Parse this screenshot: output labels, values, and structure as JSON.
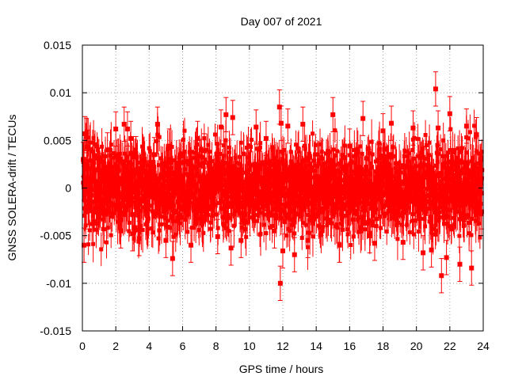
{
  "chart_data": {
    "type": "scatter",
    "title": "Day 007 of 2021",
    "xlabel": "GPS time / hours",
    "ylabel": "GNSS SOLERA-drift / TECUs",
    "xlim": [
      0,
      24
    ],
    "ylim": [
      -0.015,
      0.015
    ],
    "xticks": [
      "0",
      "2",
      "4",
      "6",
      "8",
      "10",
      "12",
      "14",
      "16",
      "18",
      "20",
      "22",
      "24"
    ],
    "yticks": [
      "0.015",
      "0.01",
      "0.005",
      "0",
      "-0.005",
      "-0.01",
      "-0.015"
    ],
    "grid": true,
    "legend": "none",
    "color": "#ff0000",
    "points": [
      [
        0.05,
        0.003
      ],
      [
        0.1,
        0.0005
      ],
      [
        0.1,
        -0.006
      ],
      [
        0.15,
        0.0057
      ],
      [
        0.2,
        -0.0025
      ],
      [
        0.25,
        0.0055
      ],
      [
        0.3,
        0.0043
      ],
      [
        0.35,
        0.001
      ],
      [
        0.4,
        -0.002
      ],
      [
        1.5,
        0.004
      ],
      [
        2.0,
        0.0062
      ],
      [
        2.3,
        -0.0045
      ],
      [
        2.5,
        0.0067
      ],
      [
        2.7,
        0.0062
      ],
      [
        2.9,
        0.0052
      ],
      [
        3.0,
        -0.0048
      ],
      [
        3.2,
        0.0036
      ],
      [
        3.4,
        -0.0053
      ],
      [
        4.3,
        0.0035
      ],
      [
        4.5,
        0.0067
      ],
      [
        5.0,
        -0.0055
      ],
      [
        5.2,
        0.0044
      ],
      [
        5.4,
        -0.0074
      ],
      [
        6.5,
        -0.006
      ],
      [
        6.9,
        0.0052
      ],
      [
        7.3,
        0.0039
      ],
      [
        8.1,
        -0.0051
      ],
      [
        8.3,
        0.0064
      ],
      [
        8.6,
        0.0077
      ],
      [
        8.9,
        -0.0063
      ],
      [
        9.0,
        0.0074
      ],
      [
        9.5,
        -0.0055
      ],
      [
        10.4,
        0.0064
      ],
      [
        11.0,
        0.0052
      ],
      [
        11.5,
        -0.0045
      ],
      [
        11.8,
        0.0085
      ],
      [
        11.85,
        -0.01
      ],
      [
        11.9,
        0.0068
      ],
      [
        12.0,
        -0.0066
      ],
      [
        12.3,
        0.0065
      ],
      [
        12.7,
        -0.007
      ],
      [
        13.2,
        0.0067
      ],
      [
        13.5,
        -0.0055
      ],
      [
        15.0,
        0.0077
      ],
      [
        15.4,
        -0.006
      ],
      [
        16.0,
        0.0044
      ],
      [
        16.8,
        0.0073
      ],
      [
        17.2,
        -0.005
      ],
      [
        17.5,
        -0.0058
      ],
      [
        18.0,
        0.006
      ],
      [
        18.5,
        0.0068
      ],
      [
        19.2,
        -0.0057
      ],
      [
        19.8,
        0.0063
      ],
      [
        20.4,
        -0.0068
      ],
      [
        20.9,
        -0.0065
      ],
      [
        21.15,
        0.0104
      ],
      [
        21.3,
        0.0063
      ],
      [
        21.5,
        -0.0092
      ],
      [
        21.8,
        -0.0073
      ],
      [
        22.0,
        0.0078
      ],
      [
        22.6,
        -0.008
      ],
      [
        23.0,
        0.0065
      ],
      [
        23.3,
        -0.0084
      ],
      [
        23.6,
        0.0056
      ],
      [
        23.9,
        -0.0025
      ]
    ]
  }
}
